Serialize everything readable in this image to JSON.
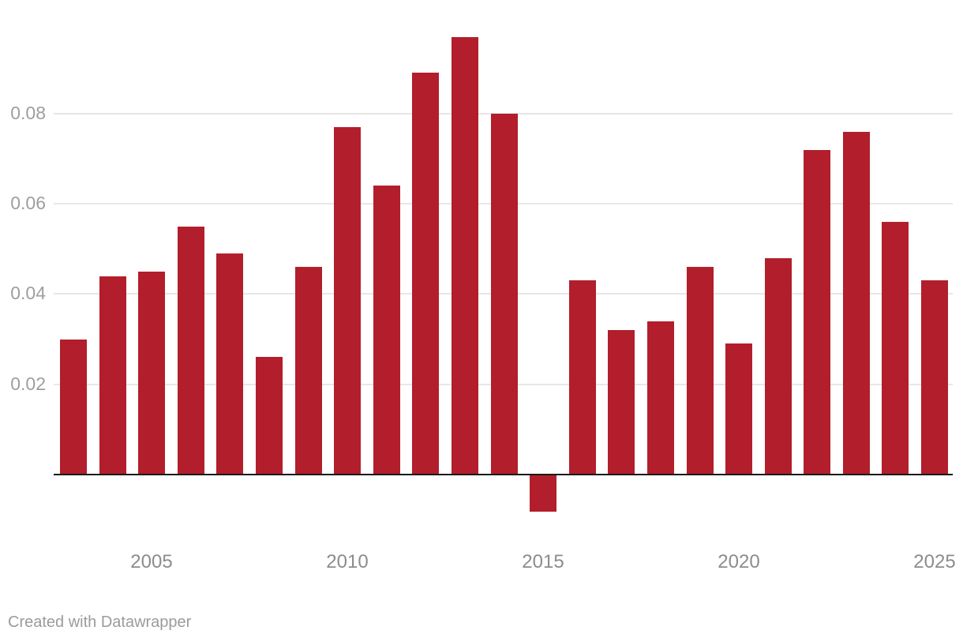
{
  "chart_data": {
    "type": "bar",
    "title": "",
    "xlabel": "",
    "ylabel": "",
    "categories": [
      2003,
      2004,
      2005,
      2006,
      2007,
      2008,
      2009,
      2010,
      2011,
      2012,
      2013,
      2014,
      2015,
      2016,
      2017,
      2018,
      2019,
      2020,
      2021,
      2022,
      2023,
      2024,
      2025
    ],
    "values": [
      0.03,
      0.044,
      0.045,
      0.055,
      0.049,
      0.026,
      0.046,
      0.077,
      0.064,
      0.089,
      0.097,
      0.08,
      -0.008,
      0.043,
      0.032,
      0.034,
      0.046,
      0.029,
      0.048,
      0.072,
      0.076,
      0.056,
      0.043
    ],
    "ylim": [
      -0.012,
      0.1
    ],
    "y_ticks": [
      {
        "value": 0.02,
        "label": "0.02"
      },
      {
        "value": 0.04,
        "label": "0.04"
      },
      {
        "value": 0.06,
        "label": "0.06"
      },
      {
        "value": 0.08,
        "label": "0.08"
      }
    ],
    "x_ticks": [
      {
        "year": 2005,
        "label": "2005"
      },
      {
        "year": 2010,
        "label": "2010"
      },
      {
        "year": 2015,
        "label": "2015"
      },
      {
        "year": 2020,
        "label": "2020"
      },
      {
        "year": 2025,
        "label": "2025"
      }
    ],
    "grid": true,
    "legend": false,
    "colors": {
      "bar": "#b21e2b",
      "gridline": "#e7e7e7",
      "baseline": "#1a1a1a",
      "y_tick_text": "#9e9e9e",
      "x_tick_text": "#8c8c8c",
      "footer_text": "#9b9b9b"
    }
  },
  "footer": {
    "attribution": "Created with Datawrapper"
  }
}
